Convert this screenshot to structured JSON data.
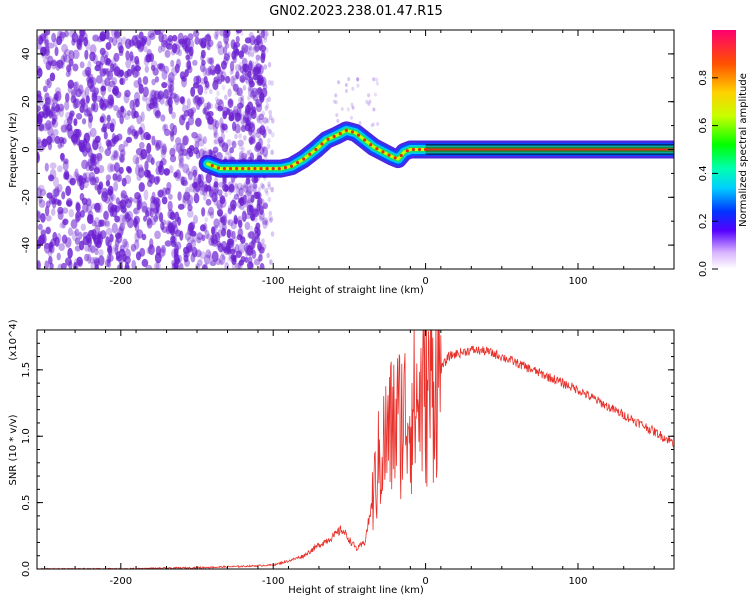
{
  "title": "GN02.2023.238.01.47.R15",
  "colors": {
    "snr_line": "#e8302a",
    "ridge_dot": "#e03010",
    "scatter": "#6a1fd0",
    "core_band": "#1a8a3a"
  },
  "chart_data": [
    {
      "type": "heatmap",
      "xlabel": "Height of straight line (km)",
      "ylabel": "Frequency (Hz)",
      "xlim": [
        -255,
        163
      ],
      "ylim": [
        -50,
        50
      ],
      "xticks": [
        -200,
        -100,
        0,
        100
      ],
      "xtick_labels": [
        "-200",
        "-100",
        "0",
        "100"
      ],
      "yticks": [
        -40,
        -20,
        0,
        20,
        40
      ],
      "ytick_labels": [
        "-40",
        "-20",
        "0",
        "20",
        "40"
      ],
      "colorbar": {
        "label": "Normalized spectral amplitude",
        "range": [
          0,
          1
        ],
        "ticks": [
          0.0,
          0.2,
          0.4,
          0.6,
          0.8
        ],
        "tick_labels": [
          "0.0",
          "0.2",
          "0.4",
          "0.6",
          "0.8"
        ]
      },
      "ridge": {
        "x": [
          -143,
          -135,
          -125,
          -115,
          -105,
          -95,
          -88,
          -80,
          -72,
          -65,
          -58,
          -52,
          -46,
          -40,
          -34,
          -28,
          -22,
          -18,
          -14,
          -10,
          -5,
          0,
          20,
          60,
          100,
          163
        ],
        "y": [
          -6,
          -8,
          -8,
          -8,
          -8,
          -8,
          -7,
          -4,
          0,
          4,
          6,
          8,
          7,
          4,
          1,
          -1,
          -3,
          -4,
          -1,
          0,
          0,
          0,
          0,
          0,
          0,
          0
        ]
      },
      "grid": false
    },
    {
      "type": "line",
      "xlabel": "Height of straight line (km)",
      "ylabel": "SNR (10 * v/v)",
      "y_multiplier": "(x10^4)",
      "xlim": [
        -255,
        163
      ],
      "ylim": [
        0,
        1.8
      ],
      "xticks": [
        -200,
        -100,
        0,
        100
      ],
      "xtick_labels": [
        "-200",
        "-100",
        "0",
        "100"
      ],
      "yticks": [
        0.0,
        0.5,
        1.0,
        1.5
      ],
      "ytick_labels": [
        "0.0",
        "0.5",
        "1.0",
        "1.5"
      ],
      "series": [
        {
          "x": [
            -255,
            -200,
            -150,
            -120,
            -100,
            -90,
            -80,
            -70,
            -60,
            -55,
            -50,
            -45,
            -40,
            -35,
            -30,
            -25,
            -20,
            -15,
            -10,
            -5,
            0,
            5,
            10,
            15,
            20,
            30,
            40,
            50,
            60,
            80,
            100,
            120,
            140,
            163
          ],
          "y": [
            0.0,
            0.0,
            0.01,
            0.02,
            0.03,
            0.06,
            0.1,
            0.18,
            0.25,
            0.3,
            0.22,
            0.15,
            0.2,
            0.5,
            0.85,
            1.0,
            1.1,
            1.15,
            1.2,
            1.25,
            1.3,
            1.4,
            1.5,
            1.6,
            1.62,
            1.65,
            1.64,
            1.6,
            1.55,
            1.45,
            1.35,
            1.22,
            1.1,
            0.95
          ]
        }
      ],
      "grid": false
    }
  ]
}
